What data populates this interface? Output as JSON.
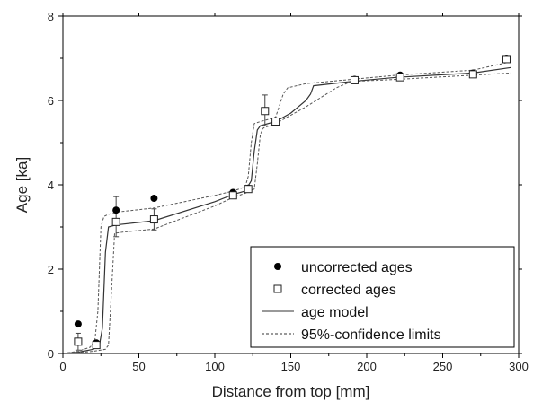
{
  "chart_data": {
    "type": "scatter",
    "xlabel": "Distance from top [mm]",
    "ylabel": "Age [ka]",
    "xlim": [
      0,
      300
    ],
    "ylim": [
      0,
      8
    ],
    "xticks": [
      0,
      50,
      100,
      150,
      200,
      250,
      300
    ],
    "yticks": [
      0,
      2,
      4,
      6,
      8
    ],
    "x_tick_labels": [
      "0",
      "50",
      "100",
      "150",
      "200",
      "250",
      "300"
    ],
    "y_tick_labels": [
      "0",
      "2",
      "4",
      "6",
      "8"
    ],
    "grid": false,
    "legend_position": "bottom-right",
    "legend": [
      {
        "label": "uncorrected ages",
        "marker": "filled-circle"
      },
      {
        "label": "corrected ages",
        "marker": "open-square"
      },
      {
        "label": "age model",
        "line": "solid"
      },
      {
        "label": "95%-confidence limits",
        "line": "dashed"
      }
    ],
    "series": [
      {
        "name": "uncorrected ages",
        "kind": "points",
        "marker": "filled-circle",
        "x": [
          10,
          22,
          35,
          60,
          112,
          122,
          133,
          140,
          192,
          222,
          270,
          292
        ],
        "y": [
          0.7,
          0.25,
          3.4,
          3.68,
          3.82,
          3.92,
          5.75,
          5.52,
          6.5,
          6.6,
          6.65,
          7.0
        ]
      },
      {
        "name": "corrected ages",
        "kind": "points",
        "marker": "open-square",
        "x": [
          10,
          22,
          35,
          60,
          112,
          122,
          133,
          140,
          192,
          222,
          270,
          292
        ],
        "y": [
          0.28,
          0.2,
          3.12,
          3.18,
          3.75,
          3.9,
          5.75,
          5.5,
          6.48,
          6.55,
          6.62,
          6.98
        ],
        "error_low": [
          0.2,
          0.08,
          0.35,
          0.25,
          0.05,
          0.08,
          0.35,
          0.08,
          0.05,
          0.05,
          0.05,
          0.07
        ],
        "error_high": [
          0.2,
          0.08,
          0.6,
          0.25,
          0.05,
          0.08,
          0.38,
          0.08,
          0.05,
          0.05,
          0.05,
          0.07
        ]
      },
      {
        "name": "age model",
        "kind": "line",
        "style": "solid",
        "x": [
          0,
          10,
          20,
          24,
          26,
          28,
          30,
          35,
          60,
          100,
          112,
          120,
          124,
          126,
          128,
          130,
          140,
          150,
          160,
          163,
          165,
          190,
          220,
          270,
          295
        ],
        "y": [
          0,
          0.03,
          0.1,
          0.2,
          0.6,
          2.4,
          3.0,
          3.05,
          3.15,
          3.6,
          3.77,
          3.85,
          4.1,
          4.8,
          5.3,
          5.4,
          5.5,
          5.7,
          6.0,
          6.15,
          6.35,
          6.45,
          6.55,
          6.65,
          6.78
        ]
      },
      {
        "name": "95%-confidence limits (upper)",
        "kind": "line",
        "style": "dashed",
        "x": [
          0,
          10,
          18,
          21,
          23,
          25,
          27,
          30,
          35,
          60,
          100,
          112,
          120,
          122,
          124,
          126,
          130,
          140,
          145,
          148,
          160,
          190,
          220,
          270,
          295
        ],
        "y": [
          0,
          0.05,
          0.15,
          0.3,
          1.0,
          3.0,
          3.25,
          3.3,
          3.35,
          3.45,
          3.75,
          3.85,
          3.95,
          4.2,
          5.0,
          5.45,
          5.5,
          5.6,
          6.15,
          6.3,
          6.4,
          6.5,
          6.6,
          6.72,
          6.92
        ]
      },
      {
        "name": "95%-confidence limits (lower)",
        "kind": "line",
        "style": "dashed",
        "x": [
          0,
          10,
          20,
          28,
          30,
          32,
          34,
          40,
          60,
          100,
          112,
          120,
          126,
          128,
          130,
          132,
          140,
          160,
          180,
          190,
          220,
          270,
          295
        ],
        "y": [
          0,
          0.02,
          0.05,
          0.1,
          0.2,
          1.5,
          2.85,
          2.88,
          2.95,
          3.5,
          3.7,
          3.8,
          3.9,
          4.5,
          5.2,
          5.35,
          5.45,
          5.85,
          6.3,
          6.45,
          6.5,
          6.6,
          6.65
        ]
      }
    ]
  }
}
